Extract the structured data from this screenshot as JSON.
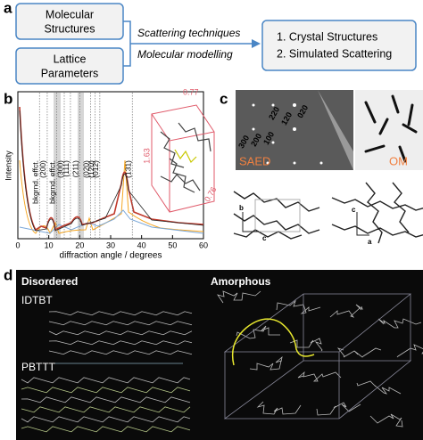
{
  "panel_a": {
    "label": "a",
    "box_1": [
      "Molecular",
      "Structures"
    ],
    "box_2": [
      "Lattice",
      "Parameters"
    ],
    "method_1": "Scattering techniques",
    "method_2": "Molecular modelling",
    "result": [
      "1. Crystal Structures",
      "2. Simulated Scattering"
    ]
  },
  "panel_b": {
    "label": "b",
    "y_label": "Intensity",
    "x_label": "diffraction angle / degrees",
    "x_ticks": [
      "0",
      "10",
      "20",
      "30",
      "40",
      "50",
      "60"
    ],
    "peaks": [
      "bkgrnd. effct.",
      "(200)",
      "bkgrnd. effct.",
      "(300)",
      "(111)",
      "(211)",
      "(020)",
      "(120)",
      "(012)",
      "(131)"
    ],
    "cell": [
      "0.77",
      "1.63",
      "0.76"
    ]
  },
  "panel_c": {
    "label": "c",
    "reflections": [
      "300",
      "200",
      "100",
      "220",
      "120",
      "020"
    ],
    "saed": "SAED",
    "om": "OM",
    "axes_1": [
      "b",
      "c"
    ],
    "axes_2": [
      "c",
      "a"
    ]
  },
  "panel_d": {
    "label": "d",
    "left_title": "Disordered",
    "right_title": "Amorphous",
    "polymers": [
      "IDTBT",
      "PBTTT"
    ]
  }
}
